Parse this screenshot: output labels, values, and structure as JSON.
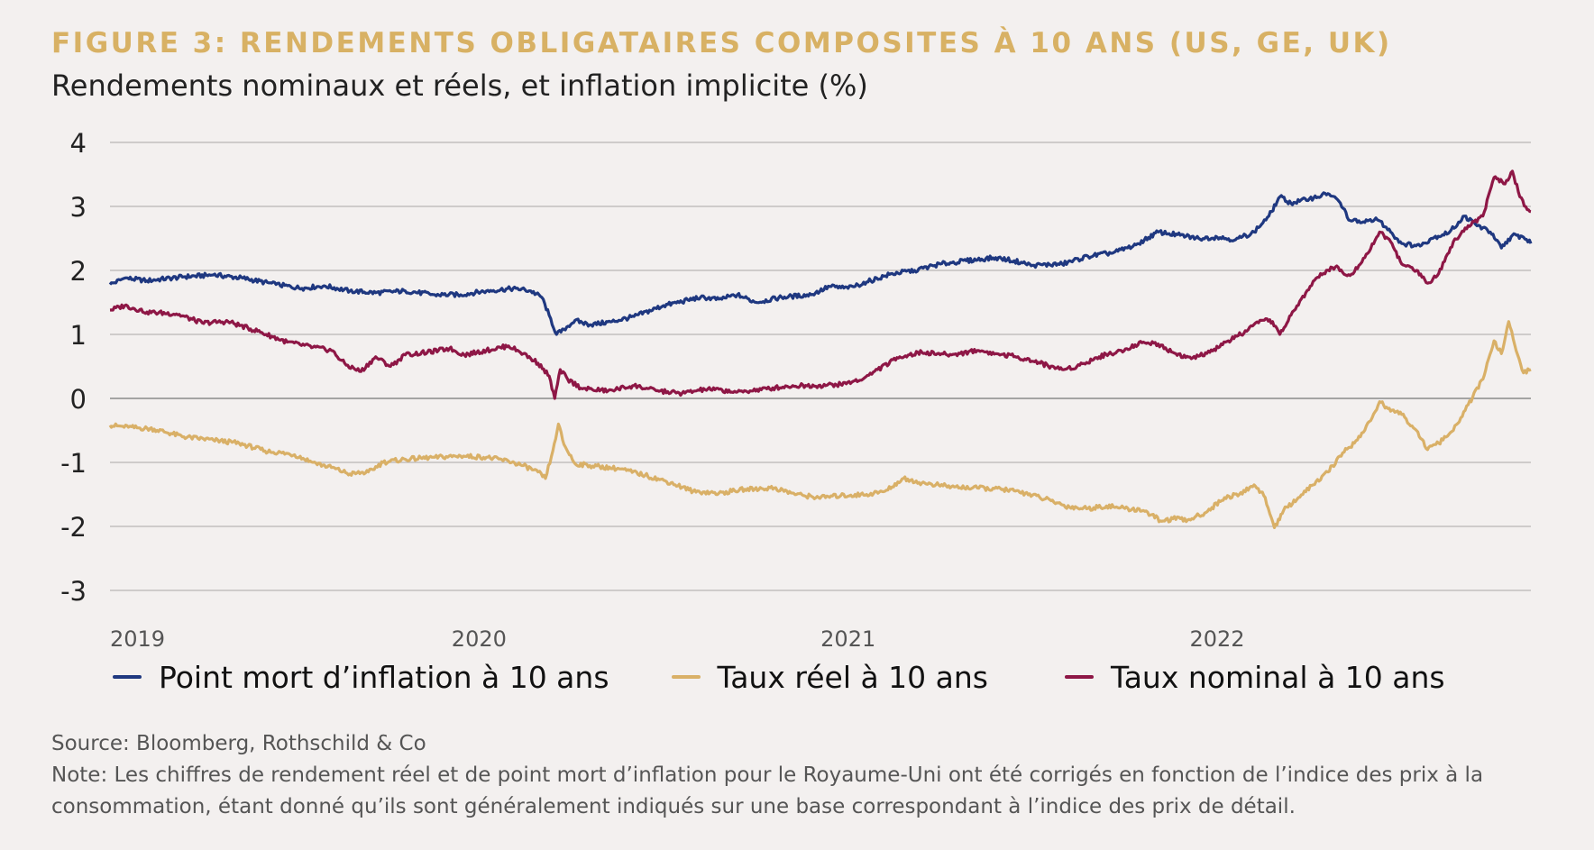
{
  "header": {
    "title": "FIGURE 3: RENDEMENTS OBLIGATAIRES COMPOSITES À 10 ANS (US, GE, UK)",
    "subtitle": "Rendements nominaux et réels, et inflation implicite (%)"
  },
  "chart_data": {
    "type": "line",
    "ylim": [
      -3,
      4
    ],
    "yticks": [
      "4",
      "3",
      "2",
      "1",
      "0",
      "-1",
      "-2",
      "-3"
    ],
    "xlim": [
      2019.0,
      2022.85
    ],
    "xticks": [
      "2019",
      "2020",
      "2021",
      "2022"
    ],
    "grid": true,
    "legend_position": "bottom",
    "series": [
      {
        "name": "Point mort d’inflation à 10 ans",
        "color": "#1f3880",
        "points": [
          [
            2019.0,
            1.78
          ],
          [
            2019.04,
            1.88
          ],
          [
            2019.1,
            1.84
          ],
          [
            2019.2,
            1.9
          ],
          [
            2019.28,
            1.93
          ],
          [
            2019.36,
            1.88
          ],
          [
            2019.45,
            1.78
          ],
          [
            2019.52,
            1.72
          ],
          [
            2019.58,
            1.76
          ],
          [
            2019.65,
            1.68
          ],
          [
            2019.72,
            1.65
          ],
          [
            2019.8,
            1.68
          ],
          [
            2019.88,
            1.62
          ],
          [
            2019.95,
            1.62
          ],
          [
            2020.02,
            1.68
          ],
          [
            2020.1,
            1.72
          ],
          [
            2020.14,
            1.68
          ],
          [
            2020.17,
            1.58
          ],
          [
            2020.19,
            1.3
          ],
          [
            2020.21,
            1.0
          ],
          [
            2020.23,
            1.08
          ],
          [
            2020.26,
            1.22
          ],
          [
            2020.3,
            1.15
          ],
          [
            2020.36,
            1.2
          ],
          [
            2020.42,
            1.28
          ],
          [
            2020.5,
            1.45
          ],
          [
            2020.6,
            1.58
          ],
          [
            2020.65,
            1.55
          ],
          [
            2020.7,
            1.62
          ],
          [
            2020.75,
            1.5
          ],
          [
            2020.82,
            1.58
          ],
          [
            2020.9,
            1.62
          ],
          [
            2020.95,
            1.75
          ],
          [
            2021.0,
            1.72
          ],
          [
            2021.05,
            1.82
          ],
          [
            2021.12,
            1.95
          ],
          [
            2021.18,
            2.0
          ],
          [
            2021.25,
            2.1
          ],
          [
            2021.32,
            2.15
          ],
          [
            2021.4,
            2.2
          ],
          [
            2021.45,
            2.15
          ],
          [
            2021.5,
            2.08
          ],
          [
            2021.58,
            2.1
          ],
          [
            2021.65,
            2.22
          ],
          [
            2021.72,
            2.28
          ],
          [
            2021.78,
            2.4
          ],
          [
            2021.84,
            2.6
          ],
          [
            2021.9,
            2.55
          ],
          [
            2021.95,
            2.5
          ],
          [
            2022.0,
            2.52
          ],
          [
            2022.05,
            2.48
          ],
          [
            2022.1,
            2.6
          ],
          [
            2022.14,
            2.85
          ],
          [
            2022.17,
            3.15
          ],
          [
            2022.2,
            3.05
          ],
          [
            2022.25,
            3.12
          ],
          [
            2022.3,
            3.2
          ],
          [
            2022.33,
            3.08
          ],
          [
            2022.36,
            2.78
          ],
          [
            2022.4,
            2.75
          ],
          [
            2022.43,
            2.82
          ],
          [
            2022.47,
            2.6
          ],
          [
            2022.5,
            2.42
          ],
          [
            2022.55,
            2.38
          ],
          [
            2022.58,
            2.5
          ],
          [
            2022.63,
            2.6
          ],
          [
            2022.67,
            2.85
          ],
          [
            2022.7,
            2.72
          ],
          [
            2022.74,
            2.6
          ],
          [
            2022.77,
            2.35
          ],
          [
            2022.8,
            2.55
          ],
          [
            2022.83,
            2.52
          ],
          [
            2022.85,
            2.42
          ]
        ]
      },
      {
        "name": "Taux réel à 10 ans",
        "color": "#d9b067",
        "points": [
          [
            2019.0,
            -0.42
          ],
          [
            2019.05,
            -0.45
          ],
          [
            2019.12,
            -0.48
          ],
          [
            2019.2,
            -0.6
          ],
          [
            2019.28,
            -0.65
          ],
          [
            2019.35,
            -0.7
          ],
          [
            2019.42,
            -0.82
          ],
          [
            2019.5,
            -0.88
          ],
          [
            2019.55,
            -1.0
          ],
          [
            2019.6,
            -1.08
          ],
          [
            2019.65,
            -1.18
          ],
          [
            2019.7,
            -1.15
          ],
          [
            2019.74,
            -1.0
          ],
          [
            2019.8,
            -0.95
          ],
          [
            2019.88,
            -0.92
          ],
          [
            2019.95,
            -0.9
          ],
          [
            2020.02,
            -0.92
          ],
          [
            2020.08,
            -0.98
          ],
          [
            2020.12,
            -1.05
          ],
          [
            2020.16,
            -1.15
          ],
          [
            2020.18,
            -1.25
          ],
          [
            2020.2,
            -0.82
          ],
          [
            2020.215,
            -0.4
          ],
          [
            2020.23,
            -0.72
          ],
          [
            2020.26,
            -1.02
          ],
          [
            2020.3,
            -1.05
          ],
          [
            2020.38,
            -1.1
          ],
          [
            2020.45,
            -1.2
          ],
          [
            2020.52,
            -1.32
          ],
          [
            2020.58,
            -1.45
          ],
          [
            2020.65,
            -1.48
          ],
          [
            2020.72,
            -1.42
          ],
          [
            2020.8,
            -1.4
          ],
          [
            2020.86,
            -1.5
          ],
          [
            2020.92,
            -1.55
          ],
          [
            2020.98,
            -1.52
          ],
          [
            2021.05,
            -1.5
          ],
          [
            2021.1,
            -1.45
          ],
          [
            2021.15,
            -1.25
          ],
          [
            2021.2,
            -1.32
          ],
          [
            2021.28,
            -1.38
          ],
          [
            2021.35,
            -1.4
          ],
          [
            2021.42,
            -1.42
          ],
          [
            2021.48,
            -1.48
          ],
          [
            2021.55,
            -1.6
          ],
          [
            2021.6,
            -1.7
          ],
          [
            2021.65,
            -1.72
          ],
          [
            2021.7,
            -1.68
          ],
          [
            2021.75,
            -1.72
          ],
          [
            2021.8,
            -1.75
          ],
          [
            2021.85,
            -1.92
          ],
          [
            2021.88,
            -1.88
          ],
          [
            2021.92,
            -1.9
          ],
          [
            2021.97,
            -1.78
          ],
          [
            2022.02,
            -1.55
          ],
          [
            2022.06,
            -1.5
          ],
          [
            2022.1,
            -1.35
          ],
          [
            2022.13,
            -1.55
          ],
          [
            2022.155,
            -2.02
          ],
          [
            2022.18,
            -1.75
          ],
          [
            2022.22,
            -1.55
          ],
          [
            2022.26,
            -1.35
          ],
          [
            2022.3,
            -1.15
          ],
          [
            2022.34,
            -0.85
          ],
          [
            2022.38,
            -0.65
          ],
          [
            2022.42,
            -0.3
          ],
          [
            2022.44,
            -0.05
          ],
          [
            2022.47,
            -0.2
          ],
          [
            2022.5,
            -0.25
          ],
          [
            2022.54,
            -0.5
          ],
          [
            2022.57,
            -0.8
          ],
          [
            2022.6,
            -0.7
          ],
          [
            2022.64,
            -0.5
          ],
          [
            2022.68,
            -0.1
          ],
          [
            2022.72,
            0.3
          ],
          [
            2022.75,
            0.9
          ],
          [
            2022.77,
            0.7
          ],
          [
            2022.79,
            1.2
          ],
          [
            2022.81,
            0.75
          ],
          [
            2022.83,
            0.4
          ],
          [
            2022.85,
            0.45
          ]
        ]
      },
      {
        "name": "Taux nominal à 10 ans",
        "color": "#8e1746",
        "points": [
          [
            2019.0,
            1.38
          ],
          [
            2019.04,
            1.45
          ],
          [
            2019.1,
            1.35
          ],
          [
            2019.18,
            1.32
          ],
          [
            2019.25,
            1.18
          ],
          [
            2019.32,
            1.2
          ],
          [
            2019.4,
            1.05
          ],
          [
            2019.48,
            0.88
          ],
          [
            2019.55,
            0.8
          ],
          [
            2019.6,
            0.75
          ],
          [
            2019.64,
            0.52
          ],
          [
            2019.68,
            0.42
          ],
          [
            2019.72,
            0.65
          ],
          [
            2019.76,
            0.5
          ],
          [
            2019.8,
            0.68
          ],
          [
            2019.86,
            0.72
          ],
          [
            2019.92,
            0.78
          ],
          [
            2019.96,
            0.68
          ],
          [
            2020.02,
            0.75
          ],
          [
            2020.08,
            0.82
          ],
          [
            2020.12,
            0.7
          ],
          [
            2020.16,
            0.55
          ],
          [
            2020.19,
            0.35
          ],
          [
            2020.205,
            0.0
          ],
          [
            2020.22,
            0.45
          ],
          [
            2020.24,
            0.3
          ],
          [
            2020.28,
            0.15
          ],
          [
            2020.35,
            0.12
          ],
          [
            2020.42,
            0.2
          ],
          [
            2020.48,
            0.12
          ],
          [
            2020.55,
            0.08
          ],
          [
            2020.62,
            0.15
          ],
          [
            2020.7,
            0.1
          ],
          [
            2020.78,
            0.15
          ],
          [
            2020.85,
            0.2
          ],
          [
            2020.92,
            0.2
          ],
          [
            2020.98,
            0.22
          ],
          [
            2021.04,
            0.3
          ],
          [
            2021.08,
            0.45
          ],
          [
            2021.14,
            0.65
          ],
          [
            2021.2,
            0.72
          ],
          [
            2021.28,
            0.68
          ],
          [
            2021.35,
            0.75
          ],
          [
            2021.4,
            0.7
          ],
          [
            2021.46,
            0.65
          ],
          [
            2021.52,
            0.55
          ],
          [
            2021.58,
            0.45
          ],
          [
            2021.62,
            0.5
          ],
          [
            2021.68,
            0.65
          ],
          [
            2021.74,
            0.75
          ],
          [
            2021.8,
            0.88
          ],
          [
            2021.84,
            0.85
          ],
          [
            2021.88,
            0.72
          ],
          [
            2021.93,
            0.62
          ],
          [
            2021.98,
            0.72
          ],
          [
            2022.03,
            0.9
          ],
          [
            2022.08,
            1.05
          ],
          [
            2022.12,
            1.22
          ],
          [
            2022.15,
            1.2
          ],
          [
            2022.17,
            1.0
          ],
          [
            2022.2,
            1.3
          ],
          [
            2022.24,
            1.65
          ],
          [
            2022.28,
            1.95
          ],
          [
            2022.32,
            2.05
          ],
          [
            2022.36,
            1.92
          ],
          [
            2022.4,
            2.2
          ],
          [
            2022.44,
            2.6
          ],
          [
            2022.47,
            2.45
          ],
          [
            2022.5,
            2.1
          ],
          [
            2022.54,
            2.0
          ],
          [
            2022.57,
            1.8
          ],
          [
            2022.6,
            1.95
          ],
          [
            2022.64,
            2.45
          ],
          [
            2022.68,
            2.7
          ],
          [
            2022.72,
            2.85
          ],
          [
            2022.75,
            3.45
          ],
          [
            2022.78,
            3.35
          ],
          [
            2022.8,
            3.55
          ],
          [
            2022.82,
            3.15
          ],
          [
            2022.84,
            2.95
          ],
          [
            2022.85,
            2.92
          ]
        ]
      }
    ]
  },
  "footer": {
    "source": "Source: Bloomberg, Rothschild & Co",
    "note": "Note: Les chiffres de rendement réel et de point mort d’inflation pour le Royaume-Uni ont été corrigés en fonction de l’indice des prix à la consommation, étant donné qu’ils sont généralement indiqués sur une base correspondant à l’indice des prix de détail."
  }
}
